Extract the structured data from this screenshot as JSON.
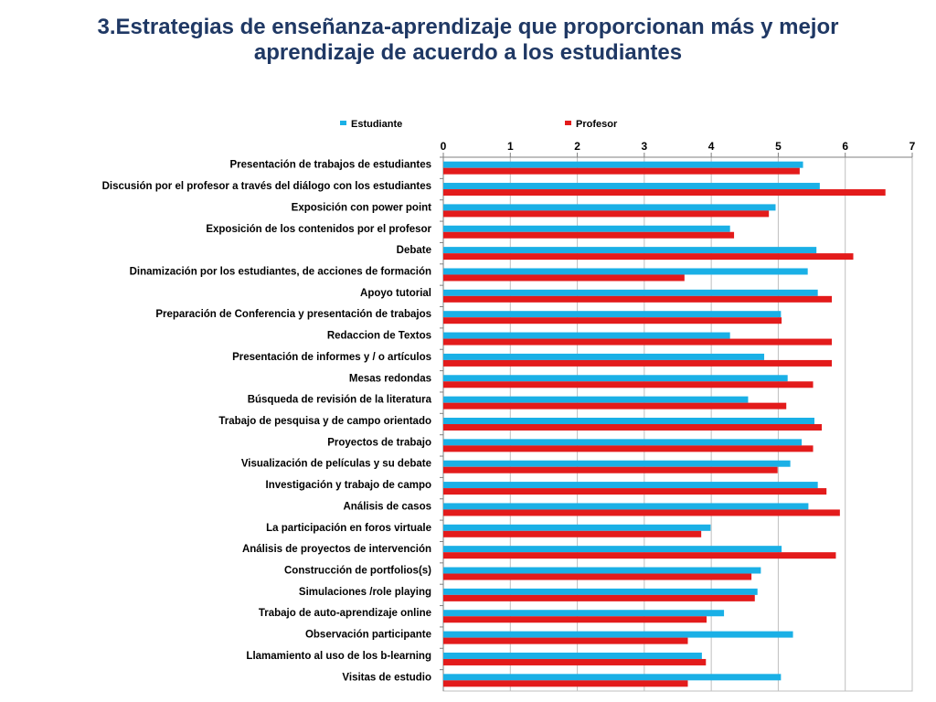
{
  "slide": {
    "title_line1": "3.Estrategias de enseñanza-aprendizaje que proporcionan más y mejor",
    "title_line2": "aprendizaje de acuerdo a los estudiantes"
  },
  "colors": {
    "title": "#1f3864",
    "estudiante": "#1ab0e6",
    "profesor": "#e31b1b",
    "grid": "#bfbfbf",
    "axis": "#7f7f7f"
  },
  "chart_data": {
    "type": "bar",
    "orientation": "horizontal",
    "xlim": [
      0,
      7
    ],
    "xticks": [
      0,
      1,
      2,
      3,
      4,
      5,
      6,
      7
    ],
    "legend_position": "top",
    "grid": "vertical",
    "categories": [
      "Presentación de trabajos de estudiantes",
      "Discusión por el profesor a través del diálogo con los estudiantes",
      "Exposición con power point",
      "Exposición de los contenidos por el profesor",
      "Debate",
      "Dinamización por los estudiantes, de acciones de formación",
      "Apoyo tutorial",
      "Preparación de Conferencia y presentación de trabajos",
      "Redaccion de Textos",
      "Presentación de informes y / o artículos",
      "Mesas redondas",
      "Búsqueda de revisión de la literatura",
      "Trabajo de pesquisa y de campo orientado",
      "Proyectos de trabajo",
      "Visualización de películas y su debate",
      "Investigación y trabajo de campo",
      "Análisis de casos",
      "La participación en foros virtuale",
      "Análisis de proyectos de intervención",
      "Construcción de portfolios(s)",
      "Simulaciones /role playing",
      "Trabajo de auto-aprendizaje online",
      "Observación participante",
      "Llamamiento al uso de los b-learning",
      "Visitas de estudio"
    ],
    "series": [
      {
        "name": "Estudiante",
        "values": [
          5.37,
          5.62,
          4.96,
          4.28,
          5.57,
          5.44,
          5.59,
          5.04,
          4.28,
          4.79,
          5.14,
          4.55,
          5.54,
          5.35,
          5.18,
          5.59,
          5.45,
          3.99,
          5.05,
          4.74,
          4.69,
          4.19,
          5.22,
          3.86,
          5.04
        ]
      },
      {
        "name": "Profesor",
        "values": [
          5.32,
          6.6,
          4.86,
          4.34,
          6.12,
          3.6,
          5.8,
          5.05,
          5.8,
          5.8,
          5.52,
          5.12,
          5.65,
          5.52,
          4.99,
          5.72,
          5.92,
          3.85,
          5.86,
          4.6,
          4.65,
          3.93,
          3.65,
          3.92,
          3.65
        ]
      }
    ]
  }
}
